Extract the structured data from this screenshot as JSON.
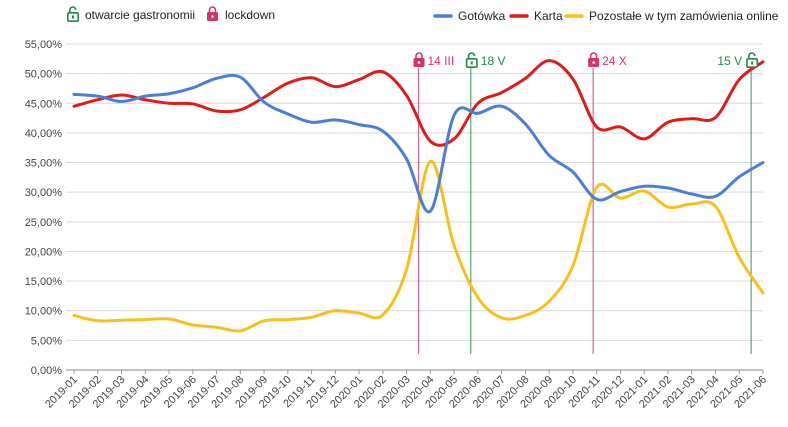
{
  "chart_data": {
    "type": "line",
    "categories": [
      "2019-01",
      "2019-02",
      "2019-03",
      "2019-04",
      "2019-05",
      "2019-06",
      "2019-07",
      "2019-08",
      "2019-09",
      "2019-10",
      "2019-11",
      "2019-12",
      "2020-01",
      "2020-02",
      "2020-03",
      "2020-04",
      "2020-05",
      "2020-06",
      "2020-07",
      "2020-08",
      "2020-09",
      "2020-10",
      "2020-11",
      "2020-12",
      "2021-01",
      "2021-02",
      "2021-03",
      "2021-04",
      "2021-05",
      "2021-06"
    ],
    "series": [
      {
        "name": "Gotówka",
        "color": "#4a7fd9",
        "values": [
          46.5,
          46.2,
          45.3,
          46.2,
          46.6,
          47.6,
          49.2,
          49.4,
          45.2,
          43.2,
          41.8,
          42.2,
          41.4,
          40.3,
          35.6,
          26.8,
          43.0,
          43.3,
          44.5,
          41.5,
          36.2,
          33.4,
          28.8,
          30.1,
          31.0,
          30.7,
          29.7,
          29.3,
          32.6,
          35.0
        ]
      },
      {
        "name": "Karta",
        "color": "#e01b1b",
        "values": [
          44.5,
          45.6,
          46.4,
          45.6,
          45.0,
          44.9,
          43.7,
          43.9,
          46.0,
          48.4,
          49.3,
          47.8,
          49.0,
          50.3,
          46.3,
          38.6,
          39.0,
          45.0,
          46.8,
          49.2,
          52.2,
          49.1,
          41.0,
          41.0,
          39.0,
          41.8,
          42.4,
          42.6,
          49.0,
          52.0
        ]
      },
      {
        "name": "Pozostałe w tym zamówienia online",
        "color": "#f5c11a",
        "values": [
          9.2,
          8.3,
          8.4,
          8.5,
          8.6,
          7.6,
          7.2,
          6.6,
          8.3,
          8.5,
          8.9,
          10.0,
          9.6,
          9.3,
          17.0,
          35.2,
          21.0,
          12.2,
          8.8,
          9.2,
          11.6,
          17.6,
          30.8,
          29.0,
          30.2,
          27.5,
          28.0,
          27.6,
          19.0,
          13.0
        ]
      }
    ],
    "ylim": [
      0,
      55
    ],
    "yticks": [
      "0,00%",
      "5,00%",
      "10,00%",
      "15,00%",
      "20,00%",
      "25,00%",
      "30,00%",
      "35,00%",
      "40,00%",
      "45,00%",
      "50,00%",
      "55,00%"
    ],
    "grid": true,
    "legend": [
      "otwarcie gastronomii",
      "lockdown",
      "Gotówka",
      "Karta",
      "Pozostałe w tym zamówienia online"
    ],
    "event_legend": [
      {
        "label": "otwarcie gastronomii",
        "color": "#1e8a4a"
      },
      {
        "label": "lockdown",
        "color": "#d6336c"
      }
    ],
    "events": [
      {
        "x": 14.5,
        "label": "14 III",
        "kind": "lockdown",
        "color": "#d6336c"
      },
      {
        "x": 16.7,
        "label": "18 V",
        "kind": "open",
        "color": "#1e8a4a"
      },
      {
        "x": 21.85,
        "label": "24 X",
        "kind": "lockdown",
        "color": "#d6336c"
      },
      {
        "x": 28.5,
        "label": "15 V",
        "kind": "open",
        "color": "#1e8a4a"
      }
    ]
  }
}
